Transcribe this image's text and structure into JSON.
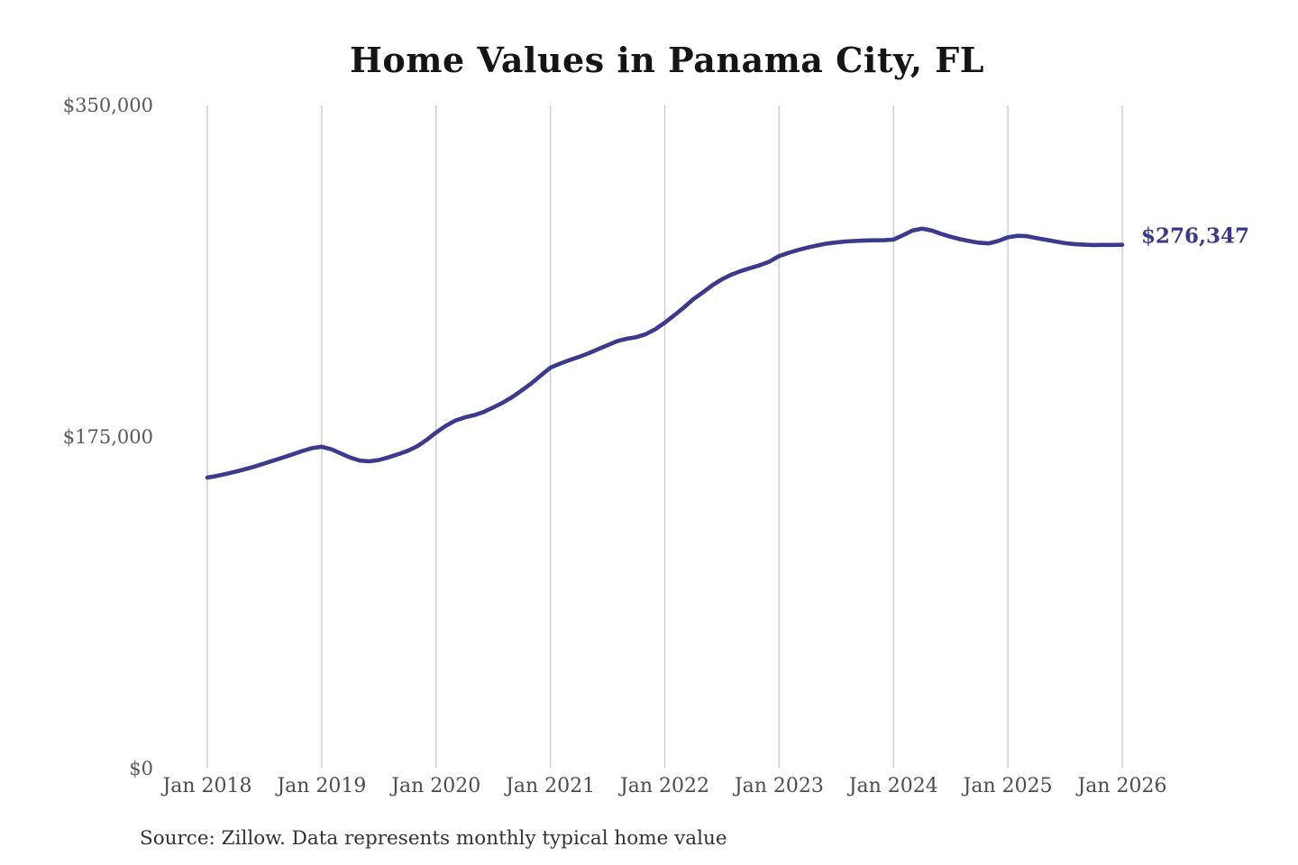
{
  "title": "Home Values in Panama City, FL",
  "source_note": "Source: Zillow. Data represents monthly typical home value",
  "end_label": "$276,347",
  "colors": {
    "line": "#3c3a8c",
    "end_label": "#3a3889",
    "grid": "#cccccc",
    "y_tick_text": "#595959",
    "x_tick_text": "#4d4d4d",
    "title_text": "#151515",
    "source_text": "#323232",
    "background": "#ffffff"
  },
  "chart_data": {
    "type": "line",
    "title": "Home Values in Panama City, FL",
    "xlabel": "",
    "ylabel": "",
    "ylim": [
      0,
      350000
    ],
    "grid": "vertical-only",
    "legend": "none",
    "y_tick_labels": [
      "$350,000",
      "$175,000",
      "$0"
    ],
    "y_tick_values": [
      350000,
      175000,
      0
    ],
    "x_tick_labels": [
      "Jan 2018",
      "Jan 2019",
      "Jan 2020",
      "Jan 2021",
      "Jan 2022",
      "Jan 2023",
      "Jan 2024",
      "Jan 2025",
      "Jan 2026"
    ],
    "series": [
      {
        "name": "Monthly typical home value",
        "x_start": "Jan 2018",
        "x_end": "Jan 2026",
        "interval": "monthly",
        "end_value": 276347,
        "end_value_label": "$276,347",
        "values": [
          153300,
          154200,
          155300,
          156500,
          157800,
          159200,
          160800,
          162400,
          164000,
          165700,
          167400,
          168900,
          169600,
          168300,
          166100,
          163900,
          162300,
          161900,
          162600,
          164000,
          165600,
          167400,
          169800,
          173200,
          177100,
          180600,
          183400,
          185100,
          186300,
          188000,
          190400,
          192900,
          195900,
          199400,
          203100,
          207300,
          211400,
          213500,
          215400,
          217100,
          219000,
          221200,
          223300,
          225400,
          226700,
          227500,
          229100,
          231700,
          235200,
          239100,
          243200,
          247600,
          251200,
          255000,
          258100,
          260600,
          262500,
          264100,
          265600,
          267500,
          270400,
          272100,
          273600,
          274900,
          276000,
          277000,
          277600,
          278100,
          278400,
          278600,
          278700,
          278800,
          279100,
          281400,
          283900,
          284900,
          283900,
          282100,
          280600,
          279300,
          278300,
          277400,
          277100,
          278400,
          280300,
          281100,
          280900,
          279900,
          279000,
          278100,
          277200,
          276700,
          276400,
          276200,
          276300,
          276300,
          276347
        ]
      }
    ]
  }
}
